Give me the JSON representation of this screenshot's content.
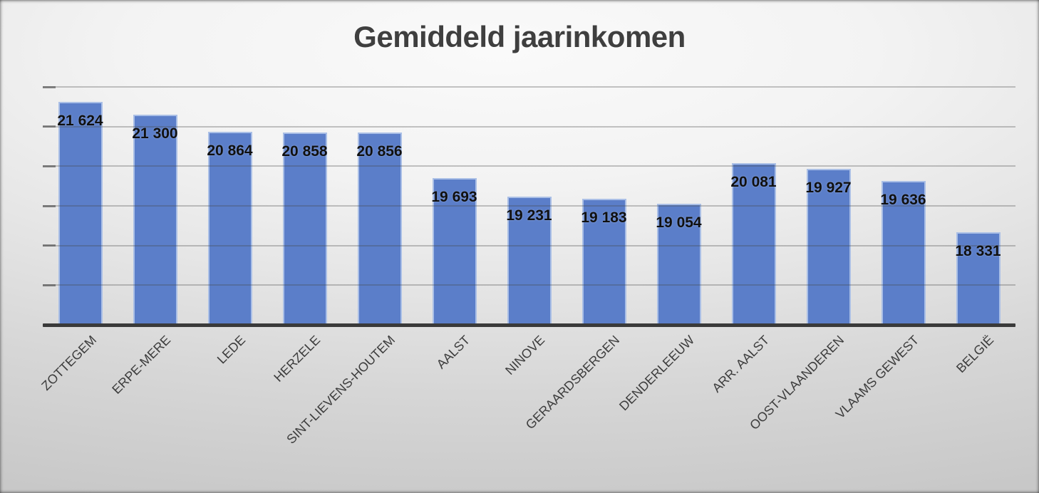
{
  "slide": {
    "title": "Gemiddeld jaarinkomen"
  },
  "chart_data": {
    "type": "bar",
    "title": "Gemiddeld jaarinkomen",
    "categories": [
      "ZOTTEGEM",
      "ERPE-MERE",
      "LEDE",
      "HERZELE",
      "SINT-LIEVENS-HOUTEM",
      "AALST",
      "NINOVE",
      "GERAARDSBERGEN",
      "DENDERLEEUW",
      "ARR. AALST",
      "OOST-VLAANDEREN",
      "VLAAMS GEWEST",
      "BELGIË"
    ],
    "values": [
      21624,
      21300,
      20864,
      20858,
      20856,
      19693,
      19231,
      19183,
      19054,
      20081,
      19927,
      19636,
      18331
    ],
    "value_labels": [
      "21 624",
      "21 300",
      "20 864",
      "20 858",
      "20 856",
      "19 693",
      "19 231",
      "19 183",
      "19 054",
      "20 081",
      "19 927",
      "19 636",
      "18 331"
    ],
    "xlabel": "",
    "ylabel": "",
    "ylim": [
      16000,
      22000
    ],
    "gridline_interval": 1000,
    "grid": true,
    "y_axis_labels_visible": false,
    "legend_position": "none",
    "data_label_position": "inside-end",
    "x_label_rotation_deg": 45,
    "number_format": "thousands separated by space"
  },
  "colors": {
    "bar_fill": "#5B7EC9",
    "bar_border": "#AABFE6",
    "gridline": "rgba(70,70,70,0.30)",
    "grid_tick": "rgba(60,60,60,0.55)",
    "axis_line": "#3A3A3A",
    "title": "#3F3F3F",
    "value_label": "#101010",
    "category_label": "#3D3D3D"
  }
}
